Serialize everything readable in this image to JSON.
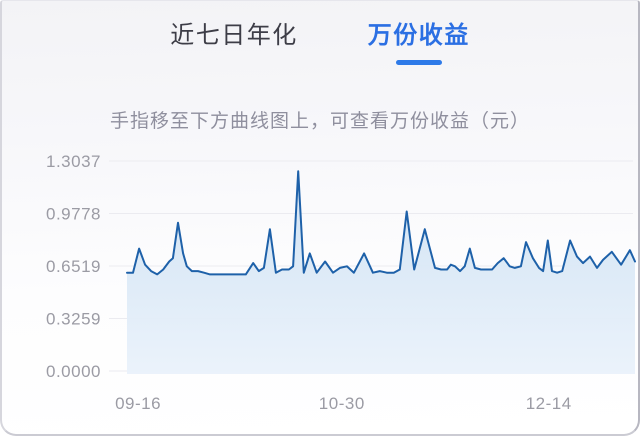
{
  "tabs": [
    {
      "label": "近七日年化",
      "active": false
    },
    {
      "label": "万份收益",
      "active": true
    }
  ],
  "subtitle": "手指移至下方曲线图上，可查看万份收益（元）",
  "chart_data": {
    "type": "area",
    "title": "万份收益（元）",
    "unit": "元",
    "legend": "none",
    "grid": "horizontal",
    "y_ticks": [
      "1.3037",
      "0.9778",
      "0.6519",
      "0.3259",
      "0.0000"
    ],
    "y_max": 1.3037,
    "x_domain": [
      0,
      109.5
    ],
    "x_ticks": [
      {
        "label": "09-16",
        "d": 2.4
      },
      {
        "label": "10-30",
        "d": 46.3
      },
      {
        "label": "12-14",
        "d": 90.9
      }
    ],
    "series": [
      {
        "name": "万份收益",
        "points": [
          [
            0,
            0.61
          ],
          [
            1.3,
            0.61
          ],
          [
            2.6,
            0.76
          ],
          [
            3.9,
            0.66
          ],
          [
            5.2,
            0.62
          ],
          [
            6.5,
            0.6
          ],
          [
            7.8,
            0.63
          ],
          [
            9.1,
            0.68
          ],
          [
            9.9,
            0.7
          ],
          [
            11,
            0.92
          ],
          [
            12.1,
            0.73
          ],
          [
            12.9,
            0.65
          ],
          [
            14,
            0.62
          ],
          [
            15.3,
            0.62
          ],
          [
            16.6,
            0.61
          ],
          [
            17.9,
            0.6
          ],
          [
            20.5,
            0.6
          ],
          [
            23.1,
            0.6
          ],
          [
            25.6,
            0.6
          ],
          [
            27.2,
            0.67
          ],
          [
            28.4,
            0.62
          ],
          [
            29.5,
            0.64
          ],
          [
            30.8,
            0.88
          ],
          [
            32.1,
            0.61
          ],
          [
            33.4,
            0.63
          ],
          [
            34.9,
            0.63
          ],
          [
            35.8,
            0.65
          ],
          [
            36.9,
            1.24
          ],
          [
            38.1,
            0.61
          ],
          [
            39.4,
            0.73
          ],
          [
            40.9,
            0.61
          ],
          [
            42.7,
            0.68
          ],
          [
            44.4,
            0.61
          ],
          [
            45.9,
            0.64
          ],
          [
            47.4,
            0.65
          ],
          [
            48.9,
            0.61
          ],
          [
            51.1,
            0.73
          ],
          [
            53,
            0.61
          ],
          [
            54.5,
            0.62
          ],
          [
            56,
            0.61
          ],
          [
            57.5,
            0.61
          ],
          [
            58.8,
            0.63
          ],
          [
            60.3,
            0.99
          ],
          [
            61.9,
            0.63
          ],
          [
            64.2,
            0.88
          ],
          [
            65.3,
            0.76
          ],
          [
            66.4,
            0.64
          ],
          [
            67.7,
            0.63
          ],
          [
            69,
            0.63
          ],
          [
            69.8,
            0.66
          ],
          [
            70.7,
            0.65
          ],
          [
            71.8,
            0.62
          ],
          [
            72.8,
            0.65
          ],
          [
            73.9,
            0.76
          ],
          [
            75,
            0.64
          ],
          [
            76.3,
            0.63
          ],
          [
            77.6,
            0.63
          ],
          [
            78.7,
            0.63
          ],
          [
            79.9,
            0.67
          ],
          [
            81.2,
            0.7
          ],
          [
            82.5,
            0.65
          ],
          [
            83.6,
            0.64
          ],
          [
            84.9,
            0.65
          ],
          [
            86,
            0.8
          ],
          [
            87.5,
            0.7
          ],
          [
            88.8,
            0.64
          ],
          [
            89.7,
            0.62
          ],
          [
            90.7,
            0.81
          ],
          [
            91.6,
            0.62
          ],
          [
            92.7,
            0.61
          ],
          [
            93.8,
            0.62
          ],
          [
            95.5,
            0.81
          ],
          [
            97,
            0.71
          ],
          [
            98.3,
            0.67
          ],
          [
            99.8,
            0.71
          ],
          [
            101.3,
            0.64
          ],
          [
            102.6,
            0.69
          ],
          [
            104.5,
            0.74
          ],
          [
            106.5,
            0.66
          ],
          [
            108.4,
            0.75
          ],
          [
            109.5,
            0.68
          ]
        ]
      }
    ],
    "colors": {
      "line": "#1e61a9",
      "fill_top": "#d6e6f5",
      "fill_bottom": "#eaf2fb",
      "grid": "#ebebf0",
      "axis_text": "#9b9ba4",
      "tab_active": "#2b6fe3",
      "tab_inactive": "#3d3d47",
      "tab_underline": "#2e7ae8"
    }
  }
}
